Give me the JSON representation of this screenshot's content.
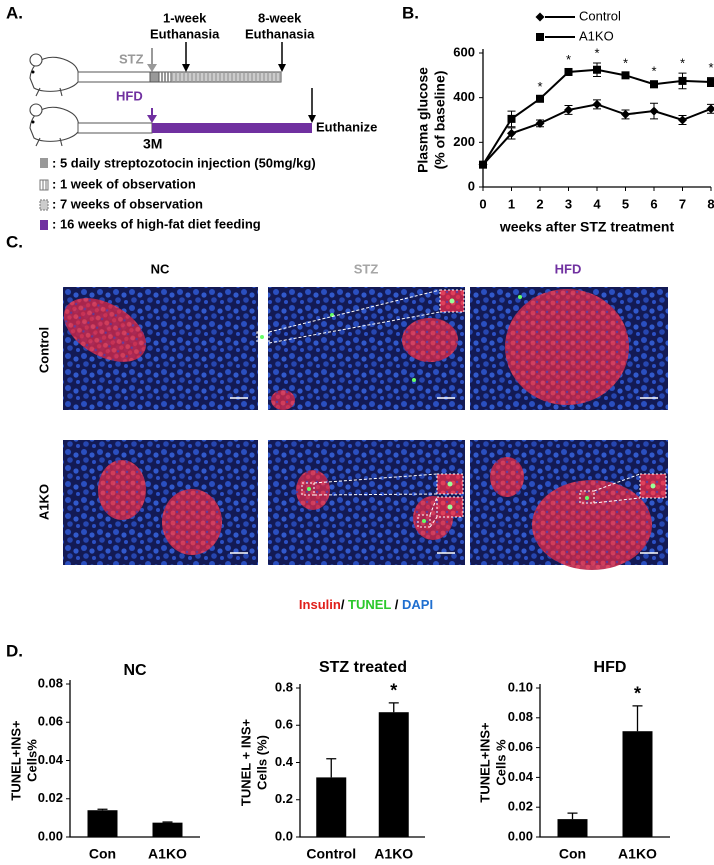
{
  "panel_labels": [
    "A.",
    "B.",
    "C.",
    "D."
  ],
  "panel_a": {
    "timeline_1": {
      "start": "STZ",
      "arrow_1": [
        "1-week",
        "Euthanasia"
      ],
      "arrow_2": [
        "8-week",
        "Euthanasia"
      ]
    },
    "timeline_2": {
      "start": "HFD",
      "start_time": "3M",
      "end": "Euthanize"
    },
    "key": [
      ": 5 daily streptozotocin injection (50mg/kg)",
      ": 1 week of observation",
      ": 7 weeks of observation",
      ": 16 weeks of high-fat diet feeding"
    ]
  },
  "panel_c": {
    "columns": [
      {
        "text": "NC",
        "color": "#000000"
      },
      {
        "text": "STZ",
        "color": "#a6a6a6"
      },
      {
        "text": "HFD",
        "color": "#7030a0"
      }
    ],
    "rows": [
      "Control",
      "A1KO"
    ],
    "stain_legend": [
      {
        "text": "Insulin",
        "color": "#e0201b"
      },
      {
        "text": "/ ",
        "color": "#000000"
      },
      {
        "text": "TUNEL",
        "color": "#2bc82b"
      },
      {
        "text": " / ",
        "color": "#000000"
      },
      {
        "text": "DAPI",
        "color": "#1f6fd0"
      }
    ]
  },
  "chart_data": [
    {
      "type": "line",
      "ylabel": [
        "Plasma glucose",
        "(% of baseline)"
      ],
      "xlabel": "weeks after STZ treatment",
      "x": [
        0,
        1,
        2,
        3,
        4,
        5,
        6,
        7,
        8
      ],
      "xlim": [
        0,
        8
      ],
      "xticks": [
        0,
        1,
        2,
        3,
        4,
        5,
        6,
        7,
        8
      ],
      "ylim": [
        0,
        600
      ],
      "yticks": [
        0,
        200,
        400,
        600
      ],
      "legend": "top-right",
      "series": [
        {
          "name": "Control",
          "color": "#000000",
          "marker": "diamond",
          "values": [
            100,
            240,
            285,
            345,
            370,
            325,
            340,
            300,
            350
          ],
          "errors": [
            10,
            25,
            15,
            20,
            20,
            20,
            35,
            20,
            20
          ]
        },
        {
          "name": "A1KO",
          "color": "#000000",
          "marker": "square",
          "values": [
            100,
            305,
            395,
            515,
            525,
            500,
            460,
            475,
            470
          ],
          "errors": [
            10,
            35,
            10,
            10,
            30,
            10,
            15,
            35,
            20
          ]
        }
      ],
      "annotations": [
        {
          "x": 2,
          "text": "*"
        },
        {
          "x": 3,
          "text": "*"
        },
        {
          "x": 4,
          "text": "*"
        },
        {
          "x": 5,
          "text": "*"
        },
        {
          "x": 6,
          "text": "*"
        },
        {
          "x": 7,
          "text": "*"
        },
        {
          "x": 8,
          "text": "*"
        }
      ]
    },
    {
      "type": "bar",
      "title": "NC",
      "ylabel": [
        "TUNEL+INS+",
        "Cells%"
      ],
      "categories": [
        "Con",
        "A1KO"
      ],
      "values": [
        0.014,
        0.0075
      ],
      "errors": [
        0.0005,
        0.0003
      ],
      "color": "#000000",
      "ylim": [
        0,
        0.08
      ],
      "yticks": [
        {
          "value": 0,
          "label": "0.00"
        },
        0.02,
        0.04,
        0.06,
        0.08
      ]
    },
    {
      "type": "bar",
      "title": "STZ treated",
      "ylabel": [
        "TUNEL + INS+",
        "Cells (%)"
      ],
      "categories": [
        "Control",
        "A1KO"
      ],
      "values": [
        0.32,
        0.67
      ],
      "errors": [
        0.1,
        0.05
      ],
      "color": "#000000",
      "ylim": [
        0,
        0.8
      ],
      "yticks": [
        {
          "value": 0,
          "label": "0.0"
        },
        0.2,
        0.4,
        0.6,
        0.8
      ],
      "annotations": [
        {
          "category": "A1KO",
          "text": "*"
        }
      ]
    },
    {
      "type": "bar",
      "title": "HFD",
      "ylabel": [
        "TUNEL+INS+",
        "Cells %"
      ],
      "categories": [
        "Con",
        "A1KO"
      ],
      "values": [
        0.012,
        0.071
      ],
      "errors": [
        0.004,
        0.017
      ],
      "color": "#000000",
      "ylim": [
        0,
        0.1
      ],
      "yticks": [
        {
          "value": 0,
          "label": "0.00"
        },
        0.02,
        0.04,
        0.06,
        0.08,
        {
          "value": 0.1,
          "label": "0.10"
        }
      ],
      "annotations": [
        {
          "category": "A1KO",
          "text": "*"
        }
      ]
    }
  ]
}
